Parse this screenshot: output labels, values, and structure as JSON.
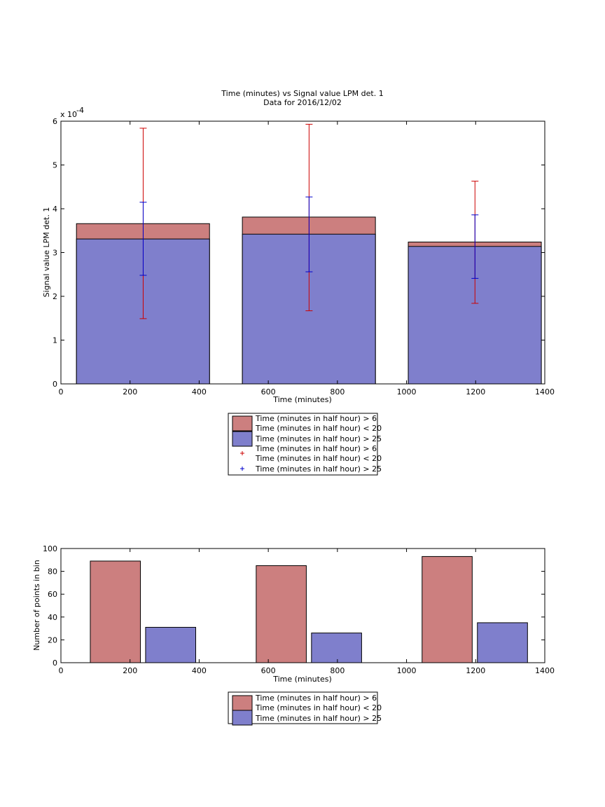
{
  "colors": {
    "red_fill": "#cc7f7f",
    "blue_fill": "#7f7fcc",
    "red_err": "#cc0000",
    "blue_err": "#0000cc"
  },
  "chart_data": [
    {
      "type": "bar",
      "stacked_overlay": true,
      "title": "Time (minutes) vs Signal value LPM det. 1",
      "subtitle": "Data for 2016/12/02",
      "xlabel": "Time (minutes)",
      "ylabel": "Signal value LPM det. 1",
      "y_exponent_label": "x 10",
      "y_exponent": "-4",
      "xlim": [
        0,
        1400
      ],
      "ylim": [
        0,
        6
      ],
      "xticks": [
        "0",
        "200",
        "400",
        "600",
        "800",
        "1000",
        "1200",
        "1400"
      ],
      "yticks": [
        "0",
        "1",
        "2",
        "3",
        "4",
        "5",
        "6"
      ],
      "bars": [
        {
          "x_start": 45,
          "x_end": 430,
          "red": 3.66,
          "blue": 3.31,
          "err_center_x": 238,
          "red_err": [
            1.49,
            5.84
          ],
          "blue_err": [
            2.48,
            4.15
          ]
        },
        {
          "x_start": 525,
          "x_end": 910,
          "red": 3.81,
          "blue": 3.42,
          "err_center_x": 718,
          "red_err": [
            1.67,
            5.93
          ],
          "blue_err": [
            2.56,
            4.27
          ]
        },
        {
          "x_start": 1005,
          "x_end": 1390,
          "red": 3.24,
          "blue": 3.14,
          "err_center_x": 1198,
          "red_err": [
            1.84,
            4.63
          ],
          "blue_err": [
            2.41,
            3.86
          ]
        }
      ],
      "legend": [
        "Time (minutes in half hour) > 6",
        "Time (minutes in half hour) < 20",
        "Time (minutes in half hour) > 25",
        "Time (minutes in half hour) > 6",
        "Time (minutes in half hour) < 20",
        "Time (minutes in half hour) > 25"
      ]
    },
    {
      "type": "bar",
      "xlabel": "Time (minutes)",
      "ylabel": "Number of points in bin",
      "xlim": [
        0,
        1400
      ],
      "ylim": [
        0,
        100
      ],
      "xticks": [
        "0",
        "200",
        "400",
        "600",
        "800",
        "1000",
        "1200",
        "1400"
      ],
      "yticks": [
        "0",
        "20",
        "40",
        "60",
        "80",
        "100"
      ],
      "series": [
        {
          "bars": [
            {
              "x_start": 85,
              "x_end": 230,
              "value": 89
            },
            {
              "x_start": 565,
              "x_end": 710,
              "value": 85
            },
            {
              "x_start": 1045,
              "x_end": 1190,
              "value": 93
            }
          ]
        },
        {
          "bars": [
            {
              "x_start": 245,
              "x_end": 390,
              "value": 31
            },
            {
              "x_start": 725,
              "x_end": 870,
              "value": 26
            },
            {
              "x_start": 1205,
              "x_end": 1350,
              "value": 35
            }
          ]
        }
      ],
      "legend": [
        "Time (minutes in half hour) > 6",
        "Time (minutes in half hour) < 20",
        "Time (minutes in half hour) > 25"
      ]
    }
  ]
}
